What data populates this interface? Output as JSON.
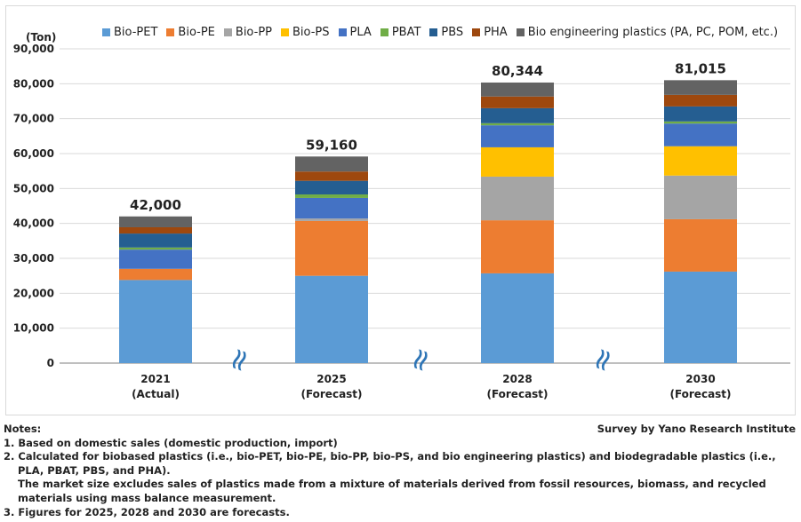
{
  "chart_data": {
    "type": "bar",
    "stacked": true,
    "unit_label": "(Ton)",
    "ylim": [
      0,
      90000
    ],
    "y_ticks": [
      "0",
      "10,000",
      "20,000",
      "30,000",
      "40,000",
      "50,000",
      "60,000",
      "70,000",
      "80,000",
      "90,000"
    ],
    "y_tick_values": [
      0,
      10000,
      20000,
      30000,
      40000,
      50000,
      60000,
      70000,
      80000,
      90000
    ],
    "categories": [
      {
        "year": "2021",
        "sub": "(Actual)"
      },
      {
        "year": "2025",
        "sub": "(Forecast)"
      },
      {
        "year": "2028",
        "sub": "(Forecast)"
      },
      {
        "year": "2030",
        "sub": "(Forecast)"
      }
    ],
    "totals": [
      "42,000",
      "59,160",
      "80,344",
      "81,015"
    ],
    "series": [
      {
        "name": "Bio-PET",
        "color": "#5b9bd5",
        "values": [
          23800,
          25000,
          25700,
          26200
        ]
      },
      {
        "name": "Bio-PE",
        "color": "#ed7d31",
        "values": [
          3200,
          15700,
          15200,
          15000
        ]
      },
      {
        "name": "Bio-PP",
        "color": "#a5a5a5",
        "values": [
          0,
          700,
          12500,
          12500
        ]
      },
      {
        "name": "Bio-PS",
        "color": "#ffc000",
        "values": [
          0,
          0,
          8400,
          8400
        ]
      },
      {
        "name": "PLA",
        "color": "#4472c4",
        "values": [
          5500,
          5900,
          6300,
          6500
        ]
      },
      {
        "name": "PBAT",
        "color": "#70ad47",
        "values": [
          600,
          1000,
          600,
          600
        ]
      },
      {
        "name": "PBS",
        "color": "#255e91",
        "values": [
          4000,
          3900,
          4300,
          4300
        ]
      },
      {
        "name": "PHA",
        "color": "#9e480e",
        "values": [
          1800,
          2660,
          3344,
          3315
        ]
      },
      {
        "name": "Bio engineering plastics (PA, PC, POM, etc.)",
        "color": "#636363",
        "values": [
          3100,
          4300,
          4000,
          4200
        ]
      }
    ],
    "break_marks": [
      "≈",
      "≈",
      "≈"
    ]
  },
  "notes": {
    "heading": "Notes:",
    "lines": [
      "1. Based on domestic sales (domestic production, import)",
      "2. Calculated for biobased plastics (i.e., bio-PET, bio-PE, bio-PP, bio-PS, and bio engineering plastics) and biodegradable plastics (i.e.,",
      "PLA, PBAT, PBS, and PHA).",
      "The market size excludes sales of plastics made from a mixture of materials derived from fossil resources, biomass, and recycled",
      "materials using mass balance measurement.",
      "3. Figures for 2025, 2028 and 2030 are forecasts."
    ]
  },
  "source": "Survey by Yano Research Institute"
}
